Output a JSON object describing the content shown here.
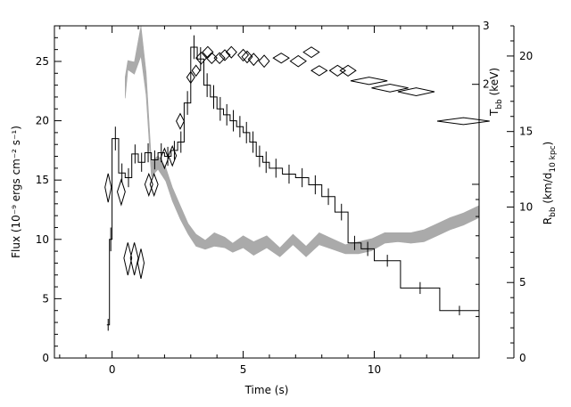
{
  "chart_data": {
    "type": "line",
    "title": "",
    "xlabel": "Time (s)",
    "xlim": [
      -2.2,
      14
    ],
    "x_ticks": [
      0,
      5,
      10
    ],
    "axes": {
      "flux": {
        "side": "left",
        "label": "Flux (10⁻⁹ ergs cm⁻² s⁻¹)",
        "ylim": [
          0,
          28
        ],
        "ticks": [
          0,
          5,
          10,
          15,
          20,
          25
        ]
      },
      "kT": {
        "side": "right-inner",
        "label_main": "T",
        "label_sub": "bb",
        "label_unit": " (keV)",
        "scale": "log",
        "ylim": [
          0.3,
          3
        ],
        "labeled_ticks": [
          2,
          3
        ]
      },
      "radius": {
        "side": "right-outer",
        "label_main": "R",
        "label_sub": "bb",
        "label_unit_a": " (km/d",
        "label_unit_sub": "10 kpc",
        "label_unit_b": ")",
        "ylim": [
          0,
          22
        ],
        "ticks": [
          0,
          5,
          10,
          15,
          20
        ]
      }
    },
    "series": [
      {
        "role": "flux",
        "style": "step-with-errorbars",
        "color": "#000000",
        "points": [
          {
            "t0": -0.2,
            "t1": -0.1,
            "y": 2.8,
            "e": 0.5
          },
          {
            "t0": -0.1,
            "t1": 0.0,
            "y": 10.0,
            "e": 1.0
          },
          {
            "t0": 0.0,
            "t1": 0.25,
            "y": 18.5,
            "e": 1.0
          },
          {
            "t0": 0.25,
            "t1": 0.5,
            "y": 15.6,
            "e": 0.8
          },
          {
            "t0": 0.5,
            "t1": 0.75,
            "y": 15.2,
            "e": 0.8
          },
          {
            "t0": 0.75,
            "t1": 1.0,
            "y": 17.2,
            "e": 0.8
          },
          {
            "t0": 1.0,
            "t1": 1.25,
            "y": 16.5,
            "e": 0.8
          },
          {
            "t0": 1.25,
            "t1": 1.5,
            "y": 17.3,
            "e": 0.8
          },
          {
            "t0": 1.5,
            "t1": 1.75,
            "y": 16.7,
            "e": 0.8
          },
          {
            "t0": 1.75,
            "t1": 2.0,
            "y": 17.3,
            "e": 0.8
          },
          {
            "t0": 2.0,
            "t1": 2.25,
            "y": 17.0,
            "e": 0.8
          },
          {
            "t0": 2.25,
            "t1": 2.5,
            "y": 17.5,
            "e": 0.8
          },
          {
            "t0": 2.5,
            "t1": 2.75,
            "y": 18.2,
            "e": 0.9
          },
          {
            "t0": 2.75,
            "t1": 3.0,
            "y": 21.5,
            "e": 1.0
          },
          {
            "t0": 3.0,
            "t1": 3.25,
            "y": 26.2,
            "e": 1.0
          },
          {
            "t0": 3.25,
            "t1": 3.5,
            "y": 25.2,
            "e": 1.0
          },
          {
            "t0": 3.5,
            "t1": 3.75,
            "y": 23.0,
            "e": 1.0
          },
          {
            "t0": 3.75,
            "t1": 4.0,
            "y": 22.0,
            "e": 1.0
          },
          {
            "t0": 4.0,
            "t1": 4.25,
            "y": 21.0,
            "e": 1.0
          },
          {
            "t0": 4.25,
            "t1": 4.5,
            "y": 20.5,
            "e": 0.9
          },
          {
            "t0": 4.5,
            "t1": 4.75,
            "y": 20.0,
            "e": 0.9
          },
          {
            "t0": 4.75,
            "t1": 5.0,
            "y": 19.5,
            "e": 0.9
          },
          {
            "t0": 5.0,
            "t1": 5.25,
            "y": 19.0,
            "e": 0.9
          },
          {
            "t0": 5.25,
            "t1": 5.5,
            "y": 18.2,
            "e": 0.9
          },
          {
            "t0": 5.5,
            "t1": 5.75,
            "y": 17.0,
            "e": 0.9
          },
          {
            "t0": 5.75,
            "t1": 6.0,
            "y": 16.5,
            "e": 0.9
          },
          {
            "t0": 6.0,
            "t1": 6.5,
            "y": 16.0,
            "e": 0.8
          },
          {
            "t0": 6.5,
            "t1": 7.0,
            "y": 15.5,
            "e": 0.8
          },
          {
            "t0": 7.0,
            "t1": 7.5,
            "y": 15.2,
            "e": 0.8
          },
          {
            "t0": 7.5,
            "t1": 8.0,
            "y": 14.6,
            "e": 0.8
          },
          {
            "t0": 8.0,
            "t1": 8.5,
            "y": 13.6,
            "e": 0.7
          },
          {
            "t0": 8.5,
            "t1": 9.0,
            "y": 12.3,
            "e": 0.7
          },
          {
            "t0": 9.0,
            "t1": 9.5,
            "y": 9.7,
            "e": 0.6
          },
          {
            "t0": 9.5,
            "t1": 10.0,
            "y": 9.2,
            "e": 0.6
          },
          {
            "t0": 10.0,
            "t1": 11.0,
            "y": 8.2,
            "e": 0.5
          },
          {
            "t0": 11.0,
            "t1": 12.5,
            "y": 5.9,
            "e": 0.5
          },
          {
            "t0": 12.5,
            "t1": 14.0,
            "y": 4.0,
            "e": 0.4
          }
        ]
      },
      {
        "role": "kT",
        "style": "diamonds",
        "color": "#000000",
        "points": [
          {
            "t": -0.15,
            "y": 0.98,
            "hw": 0.12,
            "hh": 0.65
          },
          {
            "t": 0.35,
            "y": 0.95,
            "hw": 0.15,
            "hh": 0.55
          },
          {
            "t": 0.6,
            "y": 0.6,
            "hw": 0.15,
            "hh": 0.45
          },
          {
            "t": 0.85,
            "y": 0.6,
            "hw": 0.15,
            "hh": 0.45
          },
          {
            "t": 1.1,
            "y": 0.58,
            "hw": 0.12,
            "hh": 0.4
          },
          {
            "t": 1.4,
            "y": 1.0,
            "hw": 0.15,
            "hh": 0.5
          },
          {
            "t": 1.6,
            "y": 1.0,
            "hw": 0.15,
            "hh": 0.5
          },
          {
            "t": 2.0,
            "y": 1.2,
            "hw": 0.15,
            "hh": 0.55
          },
          {
            "t": 2.3,
            "y": 1.22,
            "hw": 0.15,
            "hh": 0.55
          },
          {
            "t": 2.6,
            "y": 1.55,
            "hw": 0.15,
            "hh": 0.55
          },
          {
            "t": 3.0,
            "y": 2.1,
            "hw": 0.15,
            "hh": 0.55
          },
          {
            "t": 3.2,
            "y": 2.2,
            "hw": 0.15,
            "hh": 0.55
          },
          {
            "t": 3.4,
            "y": 2.4,
            "hw": 0.2,
            "hh": 0.65
          },
          {
            "t": 3.65,
            "y": 2.5,
            "hw": 0.2,
            "hh": 0.65
          },
          {
            "t": 3.8,
            "y": 2.4,
            "hw": 0.2,
            "hh": 0.6
          },
          {
            "t": 4.1,
            "y": 2.4,
            "hw": 0.2,
            "hh": 0.6
          },
          {
            "t": 4.3,
            "y": 2.45,
            "hw": 0.2,
            "hh": 0.6
          },
          {
            "t": 4.55,
            "y": 2.5,
            "hw": 0.2,
            "hh": 0.65
          },
          {
            "t": 5.0,
            "y": 2.45,
            "hw": 0.2,
            "hh": 0.65
          },
          {
            "t": 5.15,
            "y": 2.42,
            "hw": 0.2,
            "hh": 0.65
          },
          {
            "t": 5.4,
            "y": 2.38,
            "hw": 0.2,
            "hh": 0.65
          },
          {
            "t": 5.8,
            "y": 2.35,
            "hw": 0.2,
            "hh": 0.65
          },
          {
            "t": 6.45,
            "y": 2.4,
            "hw": 0.3,
            "hh": 0.55
          },
          {
            "t": 7.1,
            "y": 2.35,
            "hw": 0.3,
            "hh": 0.6
          },
          {
            "t": 7.6,
            "y": 2.5,
            "hw": 0.3,
            "hh": 0.6
          },
          {
            "t": 7.9,
            "y": 2.2,
            "hw": 0.3,
            "hh": 0.5
          },
          {
            "t": 8.6,
            "y": 2.2,
            "hw": 0.3,
            "hh": 0.55
          },
          {
            "t": 9.0,
            "y": 2.2,
            "hw": 0.3,
            "hh": 0.55
          },
          {
            "t": 9.8,
            "y": 2.05,
            "hw": 0.7,
            "hh": 0.35
          },
          {
            "t": 10.6,
            "y": 1.95,
            "hw": 0.7,
            "hh": 0.35
          },
          {
            "t": 11.6,
            "y": 1.9,
            "hw": 0.7,
            "hh": 0.35
          },
          {
            "t": 13.4,
            "y": 1.55,
            "hw": 1.0,
            "hh": 0.25
          }
        ]
      },
      {
        "role": "radius",
        "style": "band",
        "color": "#aaaaaa",
        "points": [
          {
            "t": 0.5,
            "lo": 17.2,
            "hi": 18.6
          },
          {
            "t": 0.6,
            "lo": 19.1,
            "hi": 19.7
          },
          {
            "t": 0.85,
            "lo": 18.8,
            "hi": 19.6
          },
          {
            "t": 1.1,
            "lo": 20.0,
            "hi": 22.0
          },
          {
            "t": 1.3,
            "lo": 17.4,
            "hi": 18.9
          },
          {
            "t": 1.5,
            "lo": 12.0,
            "hi": 13.0
          },
          {
            "t": 1.75,
            "lo": 12.5,
            "hi": 13.4
          },
          {
            "t": 2.05,
            "lo": 11.7,
            "hi": 12.6
          },
          {
            "t": 2.3,
            "lo": 10.4,
            "hi": 11.3
          },
          {
            "t": 2.6,
            "lo": 9.2,
            "hi": 10.1
          },
          {
            "t": 2.9,
            "lo": 8.2,
            "hi": 8.9
          },
          {
            "t": 3.2,
            "lo": 7.4,
            "hi": 8.2
          },
          {
            "t": 3.55,
            "lo": 7.2,
            "hi": 7.8
          },
          {
            "t": 3.9,
            "lo": 7.4,
            "hi": 8.3
          },
          {
            "t": 4.3,
            "lo": 7.3,
            "hi": 8.0
          },
          {
            "t": 4.6,
            "lo": 7.0,
            "hi": 7.6
          },
          {
            "t": 5.0,
            "lo": 7.3,
            "hi": 8.1
          },
          {
            "t": 5.4,
            "lo": 6.8,
            "hi": 7.7
          },
          {
            "t": 5.9,
            "lo": 7.3,
            "hi": 8.1
          },
          {
            "t": 6.4,
            "lo": 6.7,
            "hi": 7.3
          },
          {
            "t": 6.9,
            "lo": 7.5,
            "hi": 8.2
          },
          {
            "t": 7.4,
            "lo": 6.7,
            "hi": 7.4
          },
          {
            "t": 7.9,
            "lo": 7.5,
            "hi": 8.3
          },
          {
            "t": 8.4,
            "lo": 7.2,
            "hi": 7.9
          },
          {
            "t": 8.9,
            "lo": 6.9,
            "hi": 7.5
          },
          {
            "t": 9.4,
            "lo": 6.9,
            "hi": 7.7
          },
          {
            "t": 9.9,
            "lo": 7.1,
            "hi": 7.9
          },
          {
            "t": 10.4,
            "lo": 7.6,
            "hi": 8.3
          },
          {
            "t": 10.9,
            "lo": 7.7,
            "hi": 8.3
          },
          {
            "t": 11.4,
            "lo": 7.6,
            "hi": 8.3
          },
          {
            "t": 11.9,
            "lo": 7.7,
            "hi": 8.5
          },
          {
            "t": 12.4,
            "lo": 8.1,
            "hi": 8.9
          },
          {
            "t": 12.9,
            "lo": 8.5,
            "hi": 9.3
          },
          {
            "t": 13.4,
            "lo": 8.8,
            "hi": 9.6
          },
          {
            "t": 14.0,
            "lo": 9.3,
            "hi": 10.1
          }
        ]
      }
    ],
    "grid": false,
    "legend": "none"
  }
}
